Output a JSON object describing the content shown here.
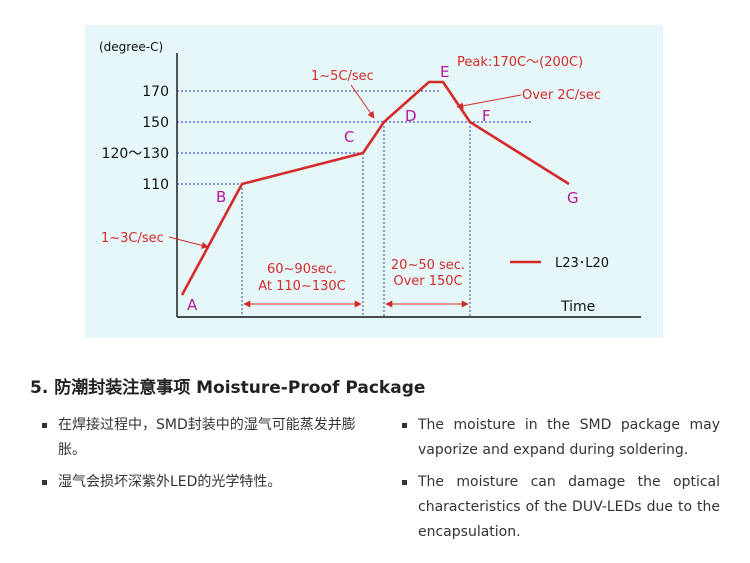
{
  "figure": {
    "y_unit_label": "(degree-C)",
    "x_axis_label": "Time",
    "y_ticks": [
      "170",
      "150",
      "120～130",
      "110"
    ],
    "points": [
      "A",
      "B",
      "C",
      "D",
      "E",
      "F",
      "G"
    ],
    "annotations": {
      "peak": "Peak:170C～(200C)",
      "ramp_1_5": "1~5C/sec",
      "ramp_1_3": "1~3C/sec",
      "over_2": "Over 2C/sec",
      "interval1_line1": "60~90sec.",
      "interval1_line2": "At 110~130C",
      "interval2_line1": "20~50 sec.",
      "interval2_line2": "Over 150C"
    },
    "legend": "L23･L20",
    "colors": {
      "background": "#e6f7f9",
      "curve": "#d42a2a",
      "points": "#b5179e",
      "guides": "#1f2fa8"
    }
  },
  "chart_data": {
    "type": "line",
    "title": "",
    "xlabel": "Time",
    "ylabel": "(degree-C)",
    "ytick_labels": [
      "170",
      "150",
      "120～130",
      "110"
    ],
    "series": [
      {
        "name": "L23･L20",
        "points": [
          {
            "label": "A",
            "y": 0
          },
          {
            "label": "B",
            "y": 110
          },
          {
            "label": "C",
            "y": 130
          },
          {
            "label": "D",
            "y": 150
          },
          {
            "label": "E",
            "y": 170
          },
          {
            "label": "E",
            "y": 170
          },
          {
            "label": "F",
            "y": 150
          },
          {
            "label": "G",
            "y": 110
          }
        ]
      }
    ],
    "x_intervals": [
      {
        "label": "60~90sec.",
        "sublabel": "At 110~130C",
        "from": "B",
        "to": "C"
      },
      {
        "label": "20~50 sec.",
        "sublabel": "Over 150C",
        "from": "D",
        "to": "F"
      }
    ],
    "legend_position": "bottom-right",
    "grid": false
  },
  "section": {
    "title": "5. 防潮封装注意事项 Moisture-Proof Package",
    "left_items": [
      "在焊接过程中，SMD封装中的湿气可能蒸发并膨胀。",
      "湿气会损坏深紫外LED的光学特性。"
    ],
    "right_items": [
      "The moisture in the SMD package may vaporize and expand during soldering.",
      "The moisture can damage the optical characteristics of the DUV-LEDs due to the encapsulation."
    ]
  }
}
